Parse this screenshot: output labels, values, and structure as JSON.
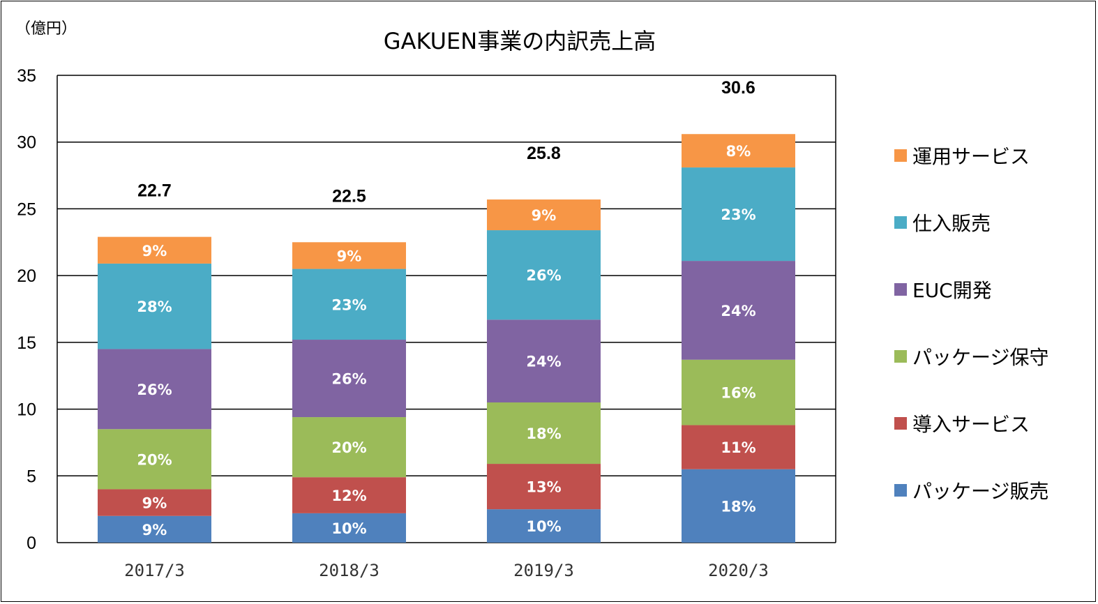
{
  "chart_data": {
    "type": "bar",
    "stacked": true,
    "title": "GAKUEN事業の内訳売上高",
    "unit_label": "（億円）",
    "categories": [
      "2017/3",
      "2018/3",
      "2019/3",
      "2020/3"
    ],
    "totals": [
      "22.7",
      "22.5",
      "25.8",
      "30.6"
    ],
    "ylim": [
      0,
      35
    ],
    "yticks": [
      "0",
      "5",
      "10",
      "15",
      "20",
      "25",
      "30",
      "35"
    ],
    "grid": true,
    "legend_position": "right",
    "series": [
      {
        "name": "パッケージ販売",
        "color": "#4F81BD",
        "values": [
          2.0,
          2.2,
          2.5,
          5.5
        ],
        "labels": [
          "9%",
          "10%",
          "10%",
          "18%"
        ]
      },
      {
        "name": "導入サービス",
        "color": "#C0504D",
        "values": [
          2.0,
          2.7,
          3.4,
          3.3
        ],
        "labels": [
          "9%",
          "12%",
          "13%",
          "11%"
        ]
      },
      {
        "name": "パッケージ保守",
        "color": "#9BBB59",
        "values": [
          4.5,
          4.5,
          4.6,
          4.9
        ],
        "labels": [
          "20%",
          "20%",
          "18%",
          "16%"
        ]
      },
      {
        "name": "EUC開発",
        "color": "#8064A2",
        "values": [
          6.0,
          5.8,
          6.2,
          7.4
        ],
        "labels": [
          "26%",
          "26%",
          "24%",
          "24%"
        ]
      },
      {
        "name": "仕入販売",
        "color": "#4BACC6",
        "values": [
          6.4,
          5.3,
          6.7,
          7.0
        ],
        "labels": [
          "28%",
          "23%",
          "26%",
          "23%"
        ]
      },
      {
        "name": "運用サービス",
        "color": "#F79646",
        "values": [
          2.0,
          2.0,
          2.3,
          2.5
        ],
        "labels": [
          "9%",
          "9%",
          "9%",
          "8%"
        ]
      }
    ]
  }
}
